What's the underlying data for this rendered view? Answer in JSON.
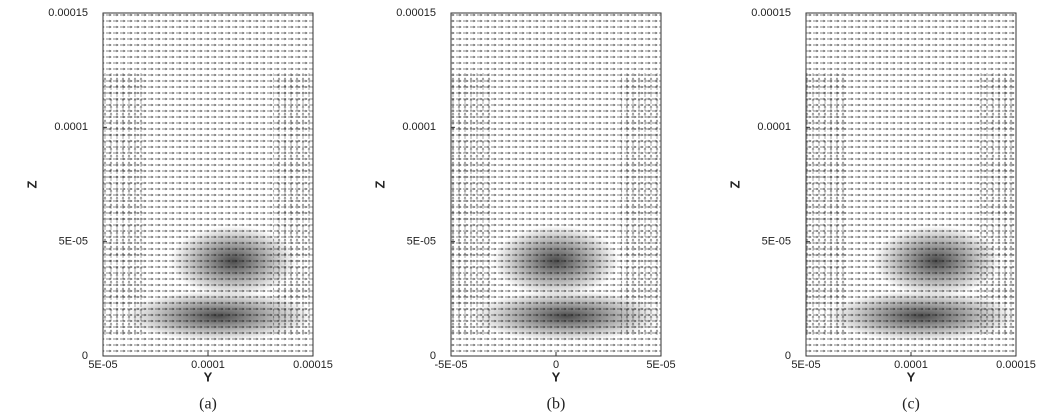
{
  "chart_data": [
    {
      "type": "vector-field",
      "x_label": "Y",
      "y_label": "Z",
      "caption": "(a)",
      "xlim": [
        5e-05,
        0.00015
      ],
      "ylim": [
        0,
        0.00015
      ],
      "xticks": [
        {
          "value": 5e-05,
          "label": "5E-05"
        },
        0.0001,
        0.00015
      ],
      "yticks": [
        0,
        {
          "value": 5e-05,
          "label": "5E-05"
        },
        0.0001,
        0.00015
      ]
    },
    {
      "type": "vector-field",
      "x_label": "Y",
      "y_label": "Z",
      "caption": "(b)",
      "xlim": [
        -5e-05,
        5e-05
      ],
      "ylim": [
        0,
        0.00015
      ],
      "xticks": [
        {
          "value": -5e-05,
          "label": "-5E-05"
        },
        0,
        {
          "value": 5e-05,
          "label": "5E-05"
        }
      ],
      "yticks": [
        0,
        {
          "value": 5e-05,
          "label": "5E-05"
        },
        0.0001,
        0.00015
      ]
    },
    {
      "type": "vector-field",
      "x_label": "Y",
      "y_label": "Z",
      "caption": "(c)",
      "xlim": [
        5e-05,
        0.00015
      ],
      "ylim": [
        0,
        0.00015
      ],
      "xticks": [
        {
          "value": 5e-05,
          "label": "5E-05"
        },
        0.0001,
        0.00015
      ],
      "yticks": [
        0,
        {
          "value": 5e-05,
          "label": "5E-05"
        },
        0.0001,
        0.00015
      ]
    }
  ]
}
